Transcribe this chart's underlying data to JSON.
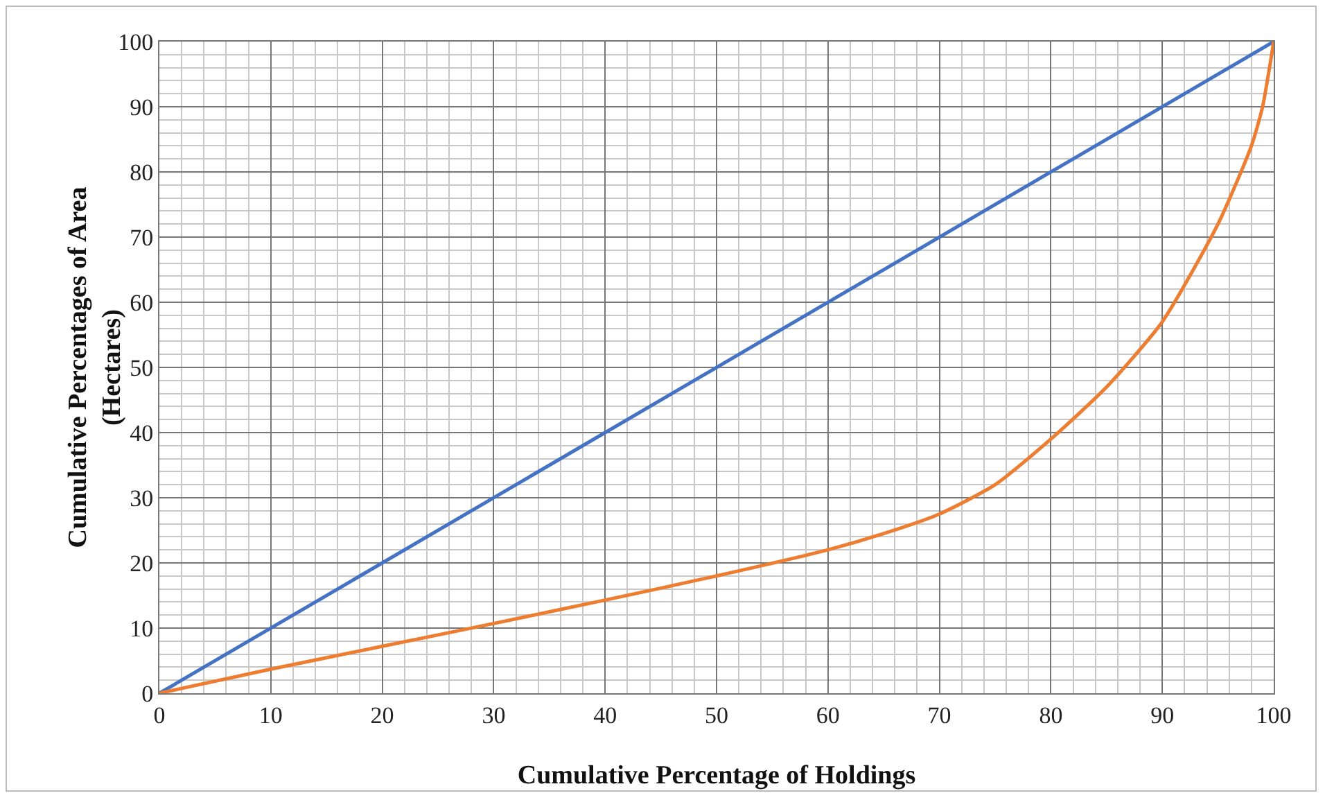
{
  "chart_data": {
    "type": "line",
    "xlabel": "Cumulative Percentage of Holdings",
    "ylabel": "Cumulative Percentages of Area\n(Hectares)",
    "series": [
      {
        "color": "#4472c4",
        "x": [
          0,
          100
        ],
        "values": [
          0,
          100
        ]
      },
      {
        "color": "#ed7d31",
        "x": [
          0,
          10,
          20,
          30,
          40,
          50,
          60,
          65,
          70,
          75,
          80,
          85,
          90,
          95,
          98,
          99,
          100
        ],
        "values": [
          0,
          3.7,
          7.2,
          10.7,
          14.3,
          18,
          22,
          24.5,
          27.5,
          32,
          39,
          47,
          57,
          72,
          84,
          90,
          100
        ]
      }
    ],
    "xlim": [
      0,
      100
    ],
    "ylim": [
      0,
      100
    ],
    "xticks": [
      0,
      10,
      20,
      30,
      40,
      50,
      60,
      70,
      80,
      90,
      100
    ],
    "yticks": [
      0,
      10,
      20,
      30,
      40,
      50,
      60,
      70,
      80,
      90,
      100
    ],
    "grid": true,
    "marker": "none",
    "line_style": "solid"
  }
}
